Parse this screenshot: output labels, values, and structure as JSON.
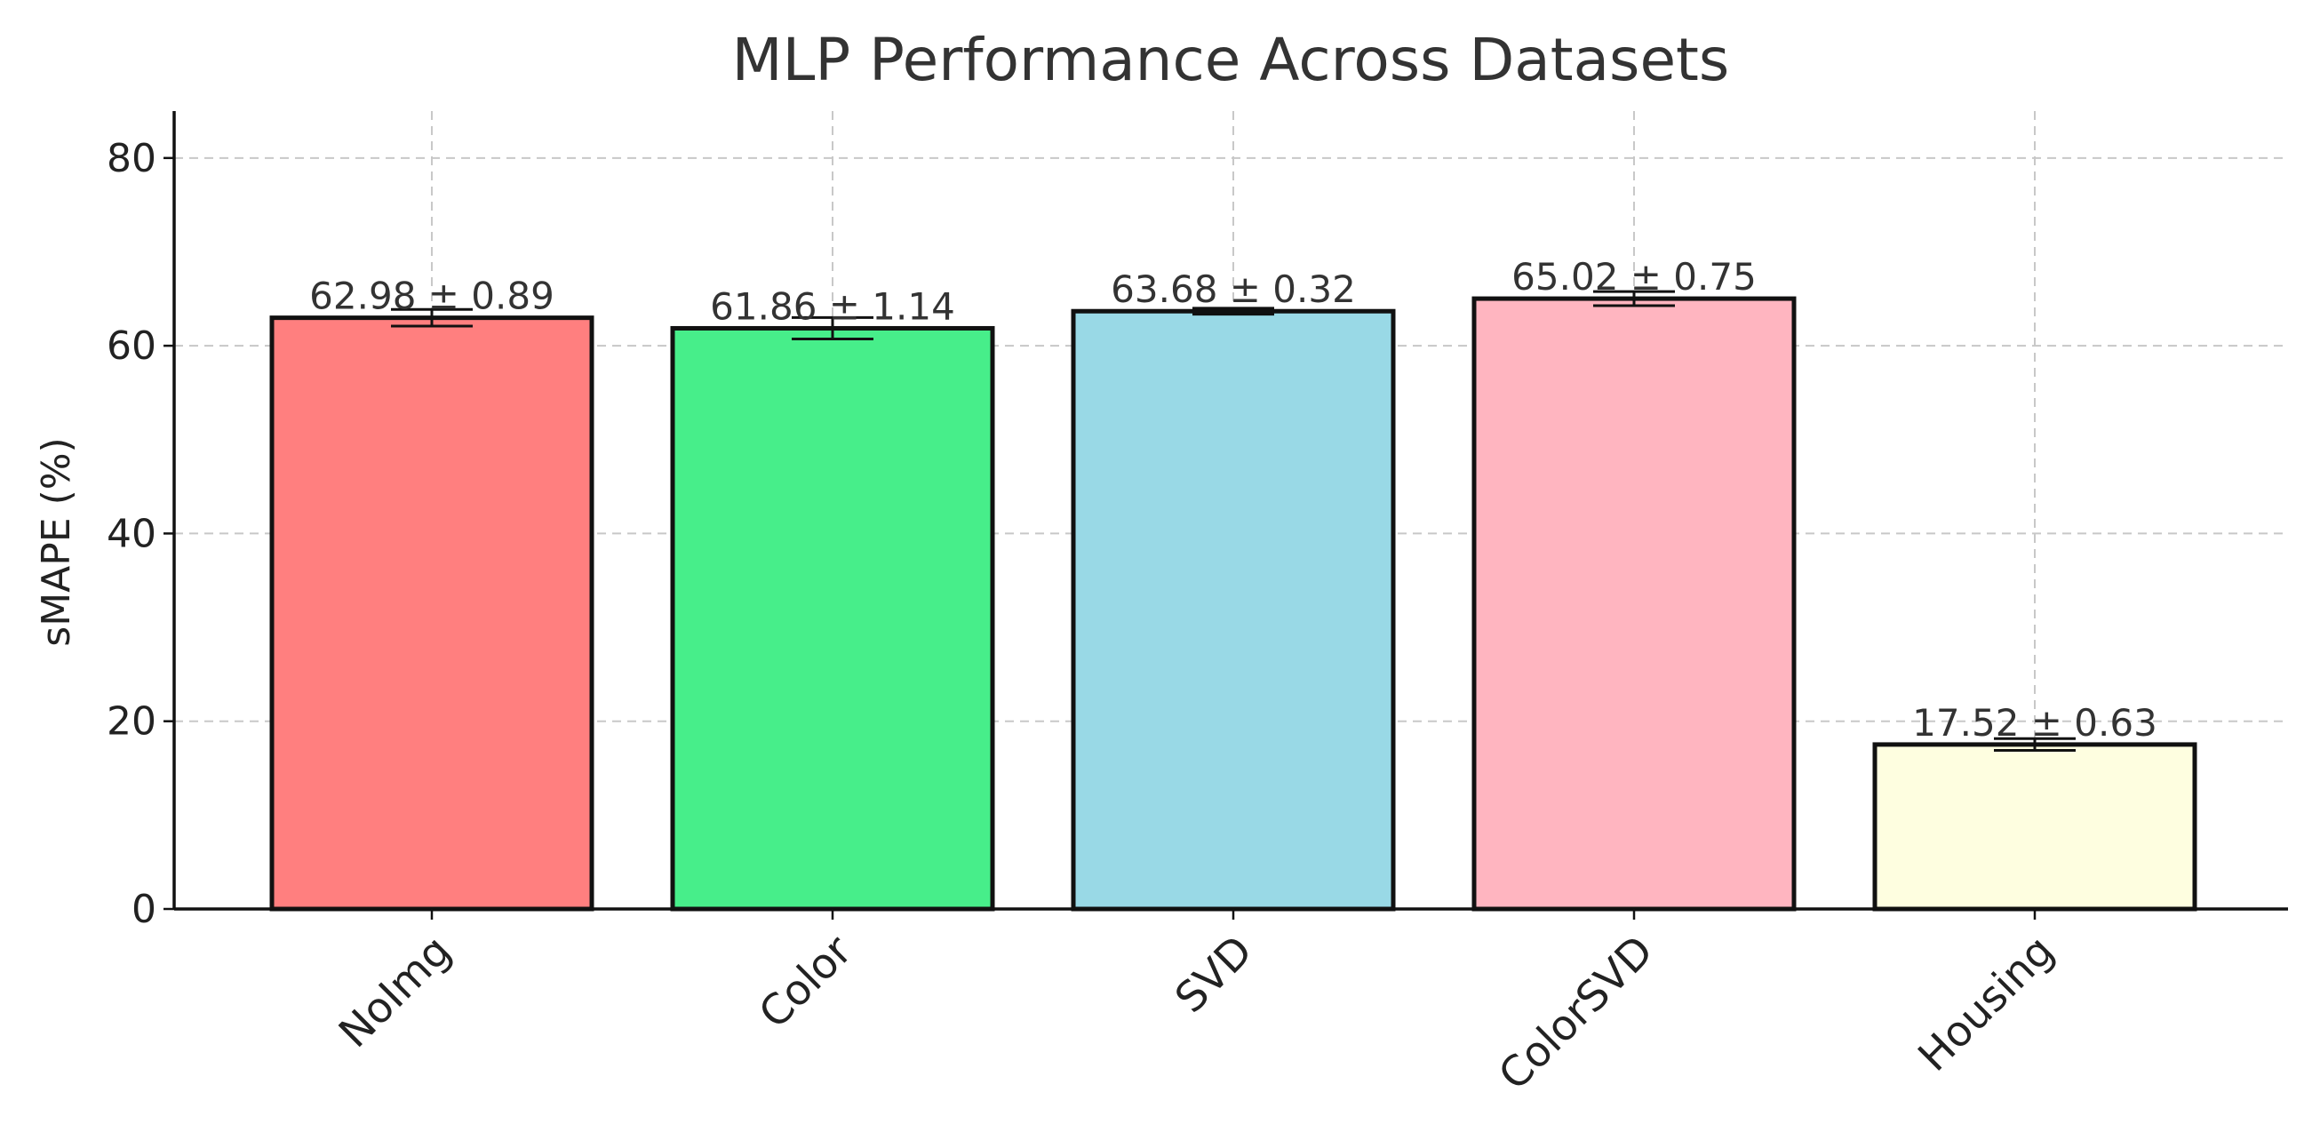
{
  "chart_data": {
    "type": "bar",
    "title": "MLP Performance Across Datasets",
    "xlabel": "",
    "ylabel": "sMAPE (%)",
    "categories": [
      "NoImg",
      "Color",
      "SVD",
      "ColorSVD",
      "Housing"
    ],
    "values": [
      62.98,
      61.86,
      63.68,
      65.02,
      17.52
    ],
    "errors": [
      0.89,
      1.14,
      0.32,
      0.75,
      0.63
    ],
    "data_labels": [
      "62.98 ± 0.89",
      "61.86 ± 1.14",
      "63.68 ± 0.32",
      "65.02 ± 0.75",
      "17.52 ± 0.63"
    ],
    "colors": [
      "#ff7f7f",
      "#47ee8a",
      "#99d9e6",
      "#ffb5c0",
      "#fefee0"
    ],
    "ylim": [
      0,
      85
    ],
    "yticks": [
      0,
      20,
      40,
      60,
      80
    ],
    "grid": true,
    "legend": "none"
  }
}
